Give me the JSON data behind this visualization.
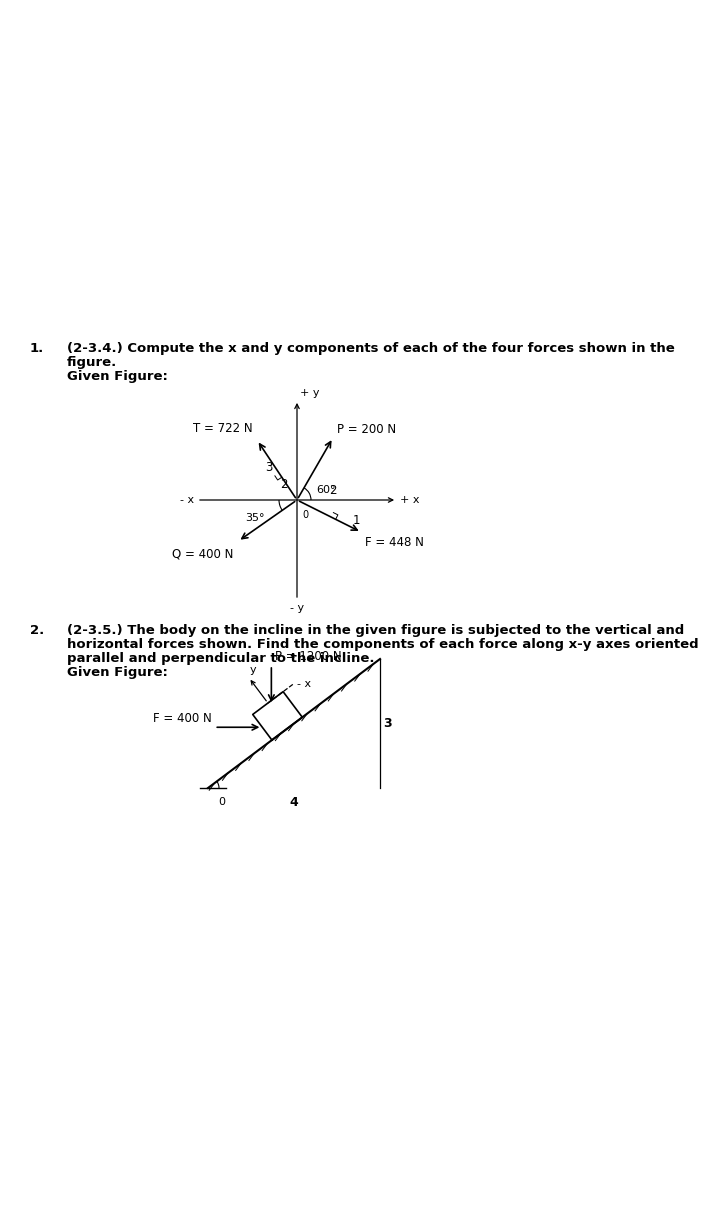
{
  "bg_color": "#ffffff",
  "fig_width": 5.68,
  "fig_height": 12.0,
  "p1_number": "1.",
  "p1_line1": "(2-3.4.) Compute the x and y components of each of the four forces shown in the",
  "p1_line2": "figure.",
  "p1_line3": "Given Figure:",
  "p2_number": "2.",
  "p2_line1": "(2-3.5.) The body on the incline in the given figure is subjected to the vertical and",
  "p2_line2": "horizontal forces shown. Find the components of each force along x-y axes oriented",
  "p2_line3": "parallel and perpendicular to the incline.",
  "p2_line4": "Given Figure:",
  "T_label": "T = 722 N",
  "P1_label": "P = 200 N",
  "Q_label": "Q = 400 N",
  "F1_label": "F = 448 N",
  "P2_label": "P = 1200 N",
  "F2_label": "F = 400 N",
  "slope_3_label": "3",
  "slope_4_label": "4",
  "angle_0_label": "0",
  "fontsize_text": 9.5,
  "fontsize_label": 8.5,
  "fontsize_small": 8.0
}
